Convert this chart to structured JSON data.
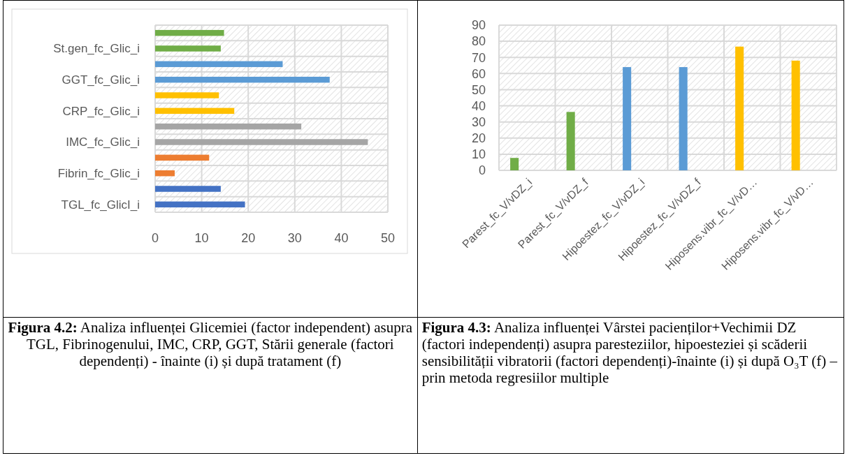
{
  "chart_data": [
    {
      "type": "bar",
      "orientation": "horizontal",
      "categories": [
        null,
        "St.gen_fc_Glic_i",
        null,
        "GGT_fc_Glic_i",
        null,
        "CRP_fc_Glic_i",
        null,
        "IMC_fc_Glic_i",
        null,
        "Fibrin_fc_Glic_i",
        null,
        "TGL_fc_GlicI_i"
      ],
      "values": [
        14.8,
        14.1,
        27.4,
        37.5,
        13.7,
        17.0,
        31.4,
        45.7,
        11.6,
        4.2,
        14.1,
        19.3
      ],
      "colors": [
        "#70ad47",
        "#70ad47",
        "#5b9bd5",
        "#5b9bd5",
        "#ffc000",
        "#ffc000",
        "#a5a5a5",
        "#a5a5a5",
        "#ed7d31",
        "#ed7d31",
        "#4472c4",
        "#4472c4"
      ],
      "xlim": [
        0,
        50
      ],
      "xticks": [
        0,
        10,
        20,
        30,
        40,
        50
      ],
      "grid": true,
      "annotations": [
        "Figura 4.2: Analiza influenței Glicemiei (factor independent) asupra TGL, Fibrinogenului, IMC, CRP, GGT, Stării generale (factori dependenți) - înainte (i) și după tratament (f)"
      ]
    },
    {
      "type": "bar",
      "categories": [
        "Parest_fc_V/vDZ_i",
        "Parest_fc_V/vDZ_f",
        "Hipoestez_fc_V/vDZ_i",
        "Hipoestez_fc_V/vDZ_f",
        "Hiposens.vibr_fc_V/vD…",
        "Hiposens.vibr_fc_V/vD…"
      ],
      "values": [
        7.7,
        36.2,
        64,
        64,
        76.7,
        68
      ],
      "colors": [
        "#70ad47",
        "#70ad47",
        "#5b9bd5",
        "#5b9bd5",
        "#ffc000",
        "#ffc000"
      ],
      "ylim": [
        0,
        90
      ],
      "yticks": [
        0,
        10,
        20,
        30,
        40,
        50,
        60,
        70,
        80,
        90
      ],
      "grid": true,
      "annotations": [
        "Figura 4.3: Analiza influenței Vârstei pacienților+Vechimii DZ (factori independenți) asupra paresteziilor, hipoesteziei și scăderii sensibilității vibratorii (factori dependenți)-înainte (i) și după O₃T (f) – prin metoda regresiilor multiple"
      ]
    }
  ]
}
